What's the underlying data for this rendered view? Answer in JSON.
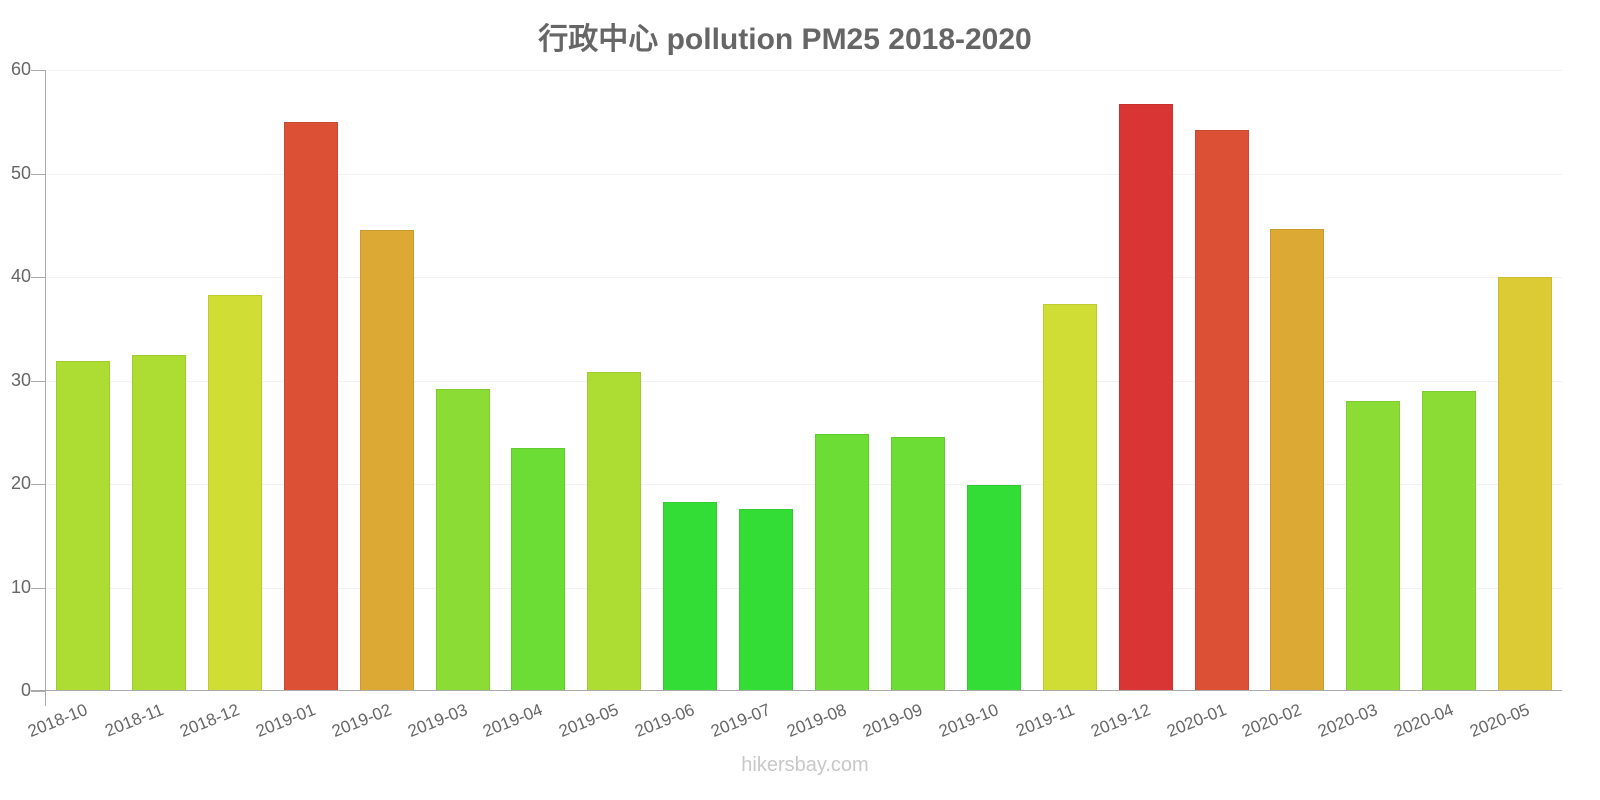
{
  "title": "行政中心 pollution PM25 2018-2020",
  "watermark": "hikersbay.com",
  "y_ticks": [
    "0",
    "10",
    "20",
    "30",
    "40",
    "50",
    "60"
  ],
  "chart_data": {
    "type": "bar",
    "title": "行政中心 pollution PM25 2018-2020",
    "xlabel": "",
    "ylabel": "",
    "ylim": [
      0,
      60
    ],
    "grid": true,
    "legend": null,
    "categories": [
      "2018-10",
      "2018-11",
      "2018-12",
      "2019-01",
      "2019-02",
      "2019-03",
      "2019-04",
      "2019-05",
      "2019-06",
      "2019-07",
      "2019-08",
      "2019-09",
      "2019-10",
      "2019-11",
      "2019-12",
      "2020-01",
      "2020-02",
      "2020-03",
      "2020-04",
      "2020-05"
    ],
    "values": [
      31.9,
      32.5,
      38.3,
      55.0,
      44.5,
      29.2,
      23.5,
      30.8,
      18.3,
      17.6,
      24.8,
      24.5,
      19.9,
      37.4,
      56.7,
      54.2,
      44.6,
      28.0,
      29.0,
      40.0
    ],
    "colors": [
      "#addd33",
      "#addd33",
      "#cfdd35",
      "#dc5035",
      "#dca935",
      "#8bdd35",
      "#6bdd35",
      "#addd33",
      "#33dd35",
      "#33dd35",
      "#6bdd35",
      "#6bdd35",
      "#33dd35",
      "#cfdd35",
      "#d93535",
      "#dc5035",
      "#dca935",
      "#8bdd35",
      "#8bdd35",
      "#dccb35"
    ]
  }
}
